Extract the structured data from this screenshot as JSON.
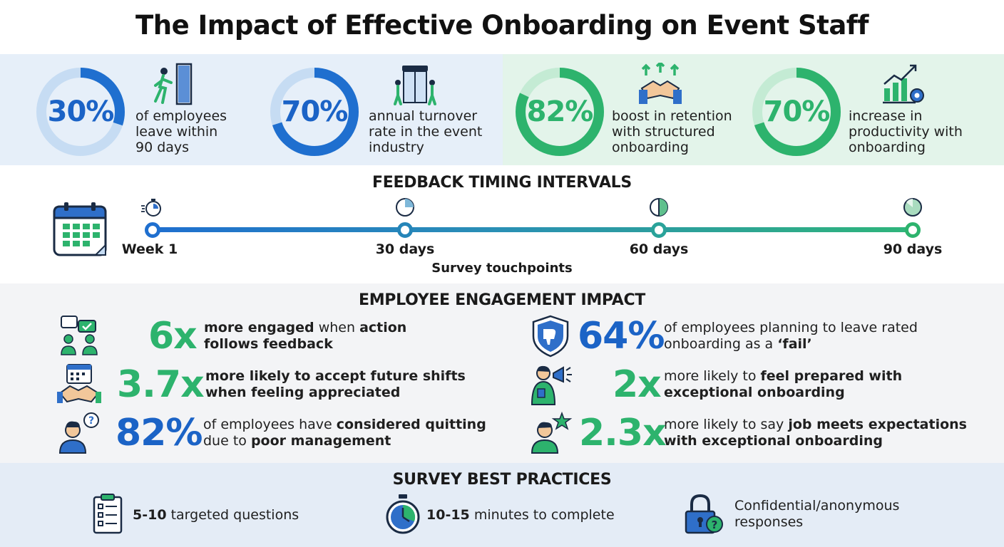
{
  "title": "The Impact of Effective Onboarding on Event Staff",
  "stats": [
    {
      "value": "30%",
      "percent": 30,
      "text": [
        "of employees",
        "leave within",
        "90 days"
      ],
      "icon": "person-exiting-door-icon",
      "color": "#1f6fcf",
      "track": "#c6dcf3"
    },
    {
      "value": "70%",
      "percent": 70,
      "text": [
        "annual turnover",
        "rate in the event",
        "industry"
      ],
      "icon": "revolving-door-icon",
      "color": "#1f6fcf",
      "track": "#c6dcf3"
    },
    {
      "value": "82%",
      "percent": 82,
      "text": [
        "boost in retention",
        "with structured",
        "onboarding"
      ],
      "icon": "handshake-arrows-icon",
      "color": "#2db36d",
      "track": "#c4ebd4"
    },
    {
      "value": "70%",
      "percent": 70,
      "text": [
        "increase in",
        "productivity with",
        "onboarding"
      ],
      "icon": "growth-chart-gear-icon",
      "color": "#2db36d",
      "track": "#c4ebd4"
    }
  ],
  "feedback": {
    "title": "FEEDBACK TIMING INTERVALS",
    "caption": "Survey touchpoints",
    "points": [
      {
        "label": "Week 1",
        "icon": "stopwatch-icon"
      },
      {
        "label": "30 days",
        "icon": "quarter-pie-icon"
      },
      {
        "label": "60 days",
        "icon": "half-pie-icon"
      },
      {
        "label": "90 days",
        "icon": "full-pie-icon"
      }
    ]
  },
  "engagement": {
    "title": "EMPLOYEE ENGAGEMENT IMPACT",
    "items": [
      {
        "value": "6x",
        "color": "green",
        "icon": "chat-people-icon",
        "line1": [
          [
            "b",
            "more engaged"
          ],
          [
            "n",
            " when "
          ],
          [
            "b",
            "action"
          ]
        ],
        "line2": [
          [
            "b",
            "follows feedback"
          ]
        ]
      },
      {
        "value": "3.7x",
        "color": "green",
        "icon": "calendar-handshake-icon",
        "line1": [
          [
            "n",
            "more likely to accept future shifts"
          ]
        ],
        "line2": [
          [
            "n",
            "when feeling appreciated"
          ]
        ],
        "boldAll": true
      },
      {
        "value": "82%",
        "color": "blue",
        "icon": "confused-person-icon",
        "line1": [
          [
            "n",
            "of employees have "
          ],
          [
            "b",
            "considered quitting"
          ]
        ],
        "line2": [
          [
            "n",
            "due to "
          ],
          [
            "b",
            "poor management"
          ]
        ]
      },
      {
        "value": "64%",
        "color": "blue",
        "icon": "shield-thumbs-down-icon",
        "line1": [
          [
            "n",
            "of employees planning to leave rated"
          ]
        ],
        "line2": [
          [
            "n",
            "onboarding as a "
          ],
          [
            "b",
            "‘fail’"
          ]
        ]
      },
      {
        "value": "2x",
        "color": "green",
        "icon": "megaphone-person-icon",
        "line1": [
          [
            "n",
            "more likely to "
          ],
          [
            "b",
            "feel prepared with"
          ]
        ],
        "line2": [
          [
            "b",
            "exceptional onboarding"
          ]
        ]
      },
      {
        "value": "2.3x",
        "color": "green",
        "icon": "star-person-icon",
        "line1": [
          [
            "n",
            "more likely to say "
          ],
          [
            "b",
            "job meets expectations"
          ]
        ],
        "line2": [
          [
            "b",
            "with exceptional onboarding"
          ]
        ]
      }
    ]
  },
  "practices": {
    "title": "SURVEY BEST PRACTICES",
    "items": [
      {
        "bold": "5-10",
        "rest": " targeted questions",
        "icon": "clipboard-checklist-icon"
      },
      {
        "bold": "10-15",
        "rest": " minutes to complete",
        "icon": "stopwatch-icon"
      },
      {
        "bold": "",
        "rest": "Confidential/anonymous responses",
        "icon": "lock-question-icon"
      }
    ]
  }
}
